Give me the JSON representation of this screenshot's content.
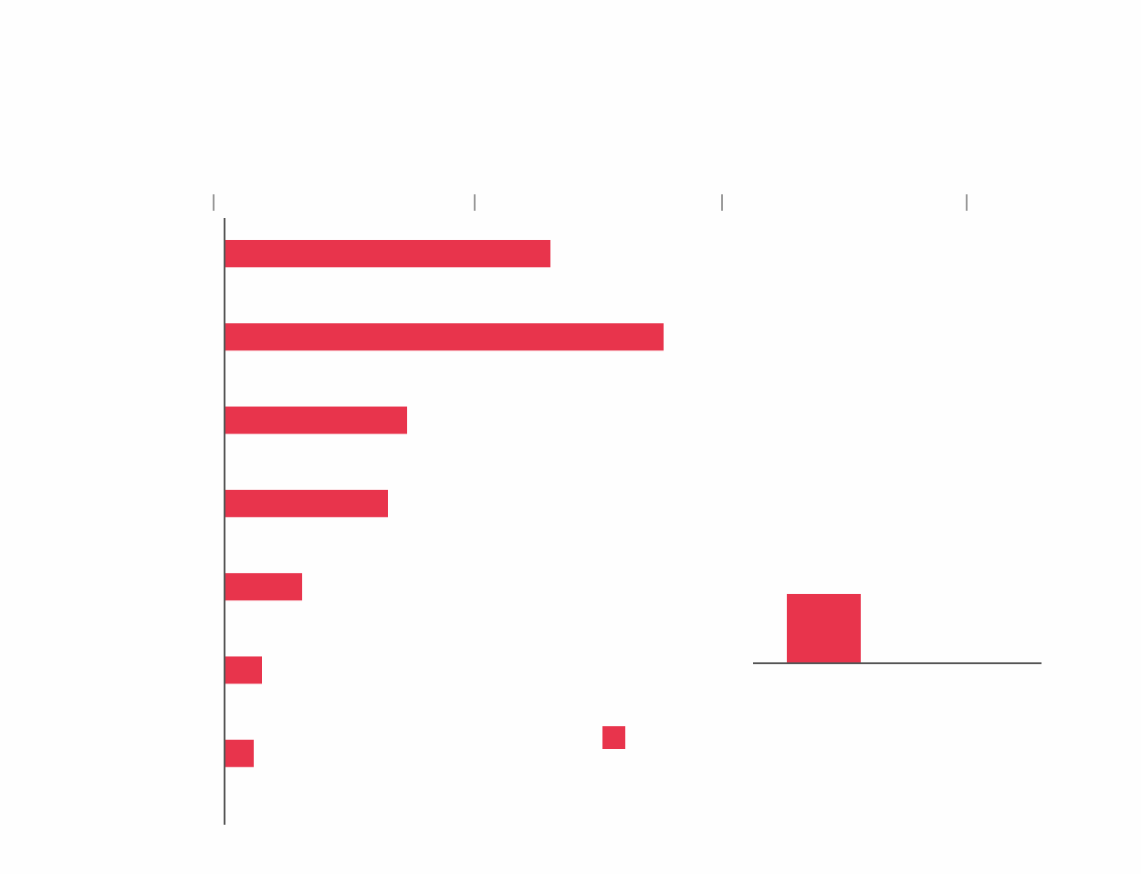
{
  "colors": {
    "bar": "#e8344c",
    "axis": "#555555",
    "background": "#fefefe"
  },
  "chart_data": [
    {
      "type": "bar",
      "orientation": "horizontal",
      "title": "",
      "xlabel": "",
      "ylabel": "",
      "categories": [
        "",
        "",
        "",
        "",
        "",
        "",
        ""
      ],
      "values": [
        356,
        480,
        199,
        178,
        84,
        40,
        31
      ],
      "xlim": [
        0,
        900
      ],
      "ticks": [
        -12,
        274,
        545,
        813
      ],
      "grid": false
    },
    {
      "type": "bar",
      "orientation": "vertical",
      "categories": [
        ""
      ],
      "values": [
        76
      ],
      "ylim": [
        0,
        100
      ],
      "legend": "bottom-left",
      "grid": false
    }
  ]
}
